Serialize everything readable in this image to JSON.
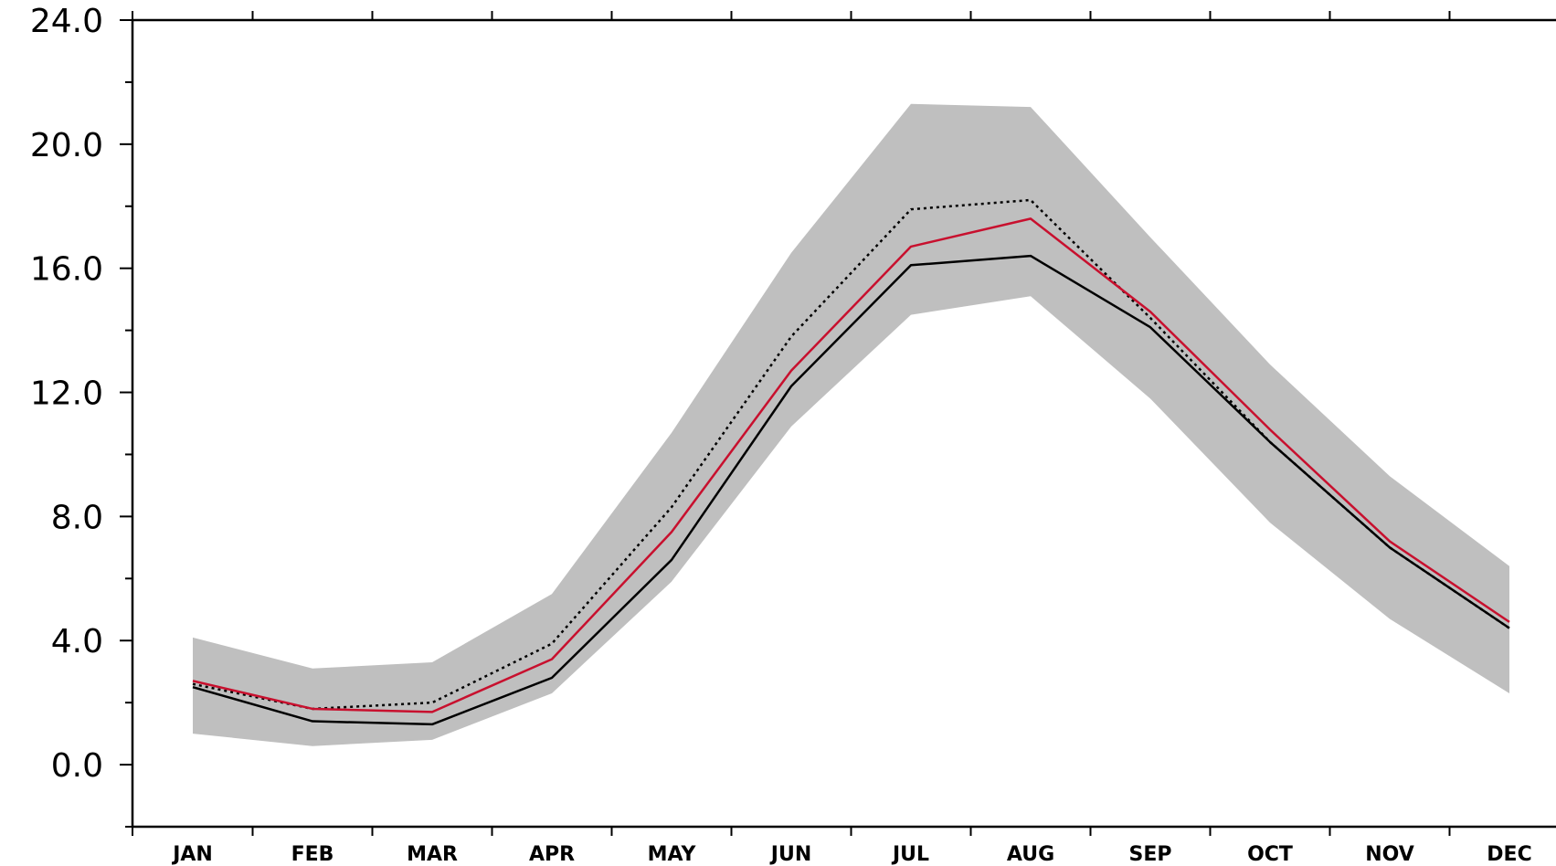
{
  "chart_data": {
    "type": "line",
    "categories": [
      "JAN",
      "FEB",
      "MAR",
      "APR",
      "MAY",
      "JUN",
      "JUL",
      "AUG",
      "SEP",
      "OCT",
      "NOV",
      "DEC"
    ],
    "ylim": [
      -2.0,
      24.0
    ],
    "yticks": [
      "0.0",
      "4.0",
      "8.0",
      "12.0",
      "16.0",
      "20.0",
      "24.0"
    ],
    "grid": false,
    "band": {
      "color": "#bfbfbf",
      "lower": [
        1.0,
        0.6,
        0.8,
        2.3,
        5.9,
        10.9,
        14.5,
        15.1,
        11.8,
        7.8,
        4.7,
        2.3
      ],
      "upper": [
        4.1,
        3.1,
        3.3,
        5.5,
        10.7,
        16.5,
        21.3,
        21.2,
        17.0,
        12.9,
        9.3,
        6.4
      ]
    },
    "series": [
      {
        "color": "#c8102e",
        "style": "solid",
        "values": [
          2.7,
          1.8,
          1.7,
          3.4,
          7.5,
          12.7,
          16.7,
          17.6,
          14.6,
          10.8,
          7.2,
          4.6
        ]
      },
      {
        "color": "#000000",
        "style": "dotted",
        "values": [
          2.6,
          1.8,
          2.0,
          3.9,
          8.3,
          13.8,
          17.9,
          18.2,
          14.4,
          10.4,
          7.0,
          4.4
        ]
      },
      {
        "color": "#000000",
        "style": "solid",
        "values": [
          2.5,
          1.4,
          1.3,
          2.8,
          6.6,
          12.2,
          16.1,
          16.4,
          14.1,
          10.4,
          7.0,
          4.4
        ]
      }
    ]
  }
}
